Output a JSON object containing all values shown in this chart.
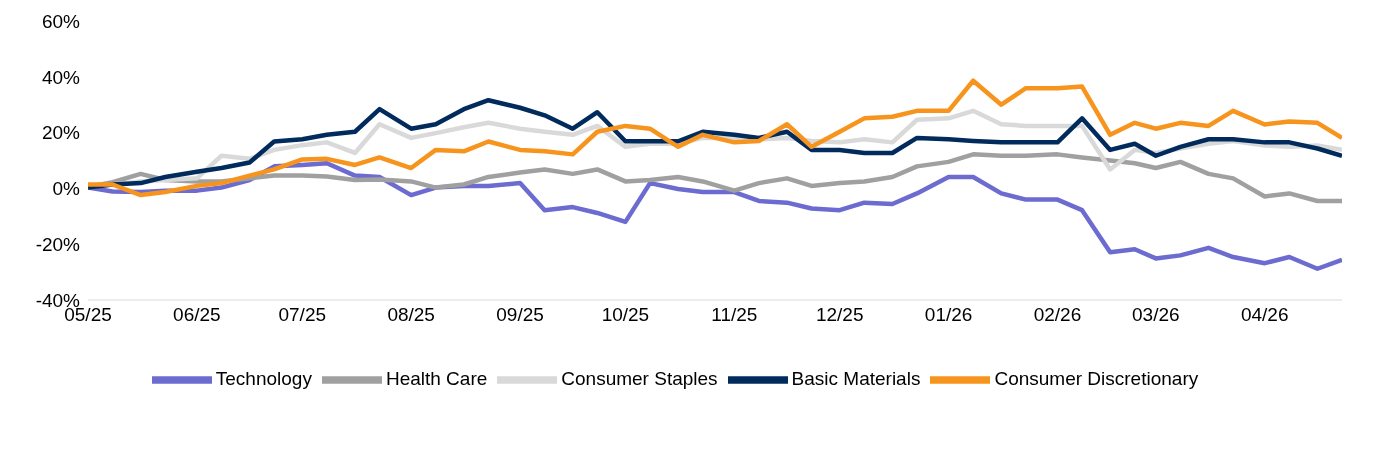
{
  "chart_data": {
    "type": "line",
    "legend": "bottom",
    "marker": "none",
    "line_style": "solid",
    "grid": false,
    "x": [
      "2025-05-01",
      "2025-05-08",
      "2025-05-16",
      "2025-05-23",
      "2025-06-01",
      "2025-06-08",
      "2025-06-16",
      "2025-06-23",
      "2025-07-01",
      "2025-07-08",
      "2025-07-16",
      "2025-07-23",
      "2025-08-01",
      "2025-08-08",
      "2025-08-16",
      "2025-08-23",
      "2025-09-01",
      "2025-09-08",
      "2025-09-16",
      "2025-09-23",
      "2025-10-01",
      "2025-10-08",
      "2025-10-16",
      "2025-10-23",
      "2025-11-01",
      "2025-11-08",
      "2025-11-16",
      "2025-11-23",
      "2025-12-01",
      "2025-12-08",
      "2025-12-16",
      "2025-12-23",
      "2026-01-01",
      "2026-01-08",
      "2026-01-16",
      "2026-01-23",
      "2026-02-01",
      "2026-02-08",
      "2026-02-16",
      "2026-02-23",
      "2026-03-01",
      "2026-03-08",
      "2026-03-16",
      "2026-03-23",
      "2026-04-01",
      "2026-04-08",
      "2026-04-16",
      "2026-04-23"
    ],
    "xlim": [
      "2025-05-01",
      "2026-04-23"
    ],
    "xticks": [
      {
        "value": "2025-05-01",
        "label": "05/25"
      },
      {
        "value": "2025-06-01",
        "label": "06/25"
      },
      {
        "value": "2025-07-01",
        "label": "07/25"
      },
      {
        "value": "2025-08-01",
        "label": "08/25"
      },
      {
        "value": "2025-09-01",
        "label": "09/25"
      },
      {
        "value": "2025-10-01",
        "label": "10/25"
      },
      {
        "value": "2025-11-01",
        "label": "11/25"
      },
      {
        "value": "2025-12-01",
        "label": "12/25"
      },
      {
        "value": "2026-01-01",
        "label": "01/26"
      },
      {
        "value": "2026-02-01",
        "label": "02/26"
      },
      {
        "value": "2026-03-01",
        "label": "03/26"
      },
      {
        "value": "2026-04-01",
        "label": "04/26"
      }
    ],
    "ylim": [
      -40,
      60
    ],
    "yticks": [
      {
        "value": -40,
        "label": "-40%"
      },
      {
        "value": -20,
        "label": "-20%"
      },
      {
        "value": 0,
        "label": "0%"
      },
      {
        "value": 20,
        "label": "20%"
      },
      {
        "value": 40,
        "label": "40%"
      },
      {
        "value": 60,
        "label": "60%"
      }
    ],
    "series": [
      {
        "name": "Technology",
        "color": "#6b6bd0",
        "values": [
          0.3,
          -1.1,
          -1.3,
          -0.8,
          -0.8,
          0.3,
          3.0,
          7.9,
          8.4,
          9.0,
          4.6,
          4.1,
          -2.4,
          0.3,
          0.9,
          0.9,
          1.9,
          -7.8,
          -6.7,
          -8.8,
          -12,
          1.9,
          -0.2,
          -1.3,
          -1.3,
          -4.5,
          -5.1,
          -7.2,
          -7.8,
          -5.1,
          -5.6,
          -1.8,
          4.1,
          4.1,
          -1.8,
          -4,
          -4,
          -7.8,
          -22.9,
          -21.8,
          -25.1,
          -24,
          -21.3,
          -24.6,
          -26.8,
          -24.6,
          -28.8,
          -25.6
        ]
      },
      {
        "name": "Health Care",
        "color": "#a0a0a0",
        "values": [
          0.6,
          2.2,
          5.2,
          3.0,
          2.5,
          2.5,
          3.6,
          4.6,
          4.6,
          4.3,
          3.0,
          3.2,
          2.5,
          0.3,
          1.4,
          4.1,
          5.7,
          6.8,
          5.2,
          6.8,
          2.5,
          3.0,
          4.1,
          2.5,
          -0.8,
          1.9,
          3.6,
          0.9,
          1.9,
          2.5,
          4.1,
          7.9,
          9.5,
          12.2,
          11.7,
          11.7,
          12.2,
          11.1,
          10,
          9,
          7.3,
          9.5,
          5.2,
          3.6,
          -2.9,
          -1.8,
          -4.5,
          -4.5
        ]
      },
      {
        "name": "Consumer Staples",
        "color": "#d9d9d9",
        "values": [
          0.6,
          1.4,
          2.5,
          3.0,
          3.6,
          11.7,
          10.6,
          13.8,
          15.5,
          16.5,
          12.7,
          23.0,
          18.1,
          19.8,
          21.9,
          23.5,
          21.4,
          20.3,
          19.2,
          22.4,
          14.9,
          16,
          16,
          18.1,
          18.1,
          17.6,
          18.1,
          17,
          16.5,
          17.6,
          16.5,
          24.6,
          25.1,
          27.8,
          23,
          22.4,
          22.4,
          22.4,
          6.8,
          13.8,
          12.7,
          14.3,
          16,
          17,
          15.4,
          14.9,
          15.4,
          13.8
        ]
      },
      {
        "name": "Basic Materials",
        "color": "#002b5c",
        "values": [
          0.3,
          1.4,
          1.9,
          4.1,
          6.0,
          7.3,
          9.3,
          16.8,
          17.6,
          19.2,
          20.3,
          28.4,
          21.4,
          23,
          28.4,
          31.6,
          28.9,
          26.2,
          21.4,
          27.3,
          16.9,
          16.9,
          16.9,
          20.3,
          19.2,
          18.1,
          20.3,
          13.8,
          13.8,
          12.7,
          12.7,
          18.1,
          17.6,
          17,
          16.5,
          16.5,
          16.5,
          25.1,
          13.8,
          16,
          11.7,
          14.9,
          17.6,
          17.6,
          16.5,
          16.5,
          14.3,
          11.7
        ]
      },
      {
        "name": "Consumer Discretionary",
        "color": "#f7941d",
        "values": [
          1.4,
          1.4,
          -2.4,
          -1.3,
          0.9,
          1.9,
          4.6,
          6.8,
          10.4,
          10.6,
          8.4,
          11.1,
          7.3,
          13.8,
          13.3,
          16.8,
          13.8,
          13.3,
          12.2,
          20.3,
          22.4,
          21.4,
          14.9,
          19.2,
          16.5,
          17,
          23,
          14.9,
          20.3,
          25.1,
          25.7,
          27.8,
          27.8,
          38.6,
          30,
          35.9,
          35.9,
          36.5,
          19.2,
          23.5,
          21.4,
          23.5,
          22.4,
          27.8,
          22.9,
          24,
          23.5,
          18.1
        ]
      }
    ]
  }
}
